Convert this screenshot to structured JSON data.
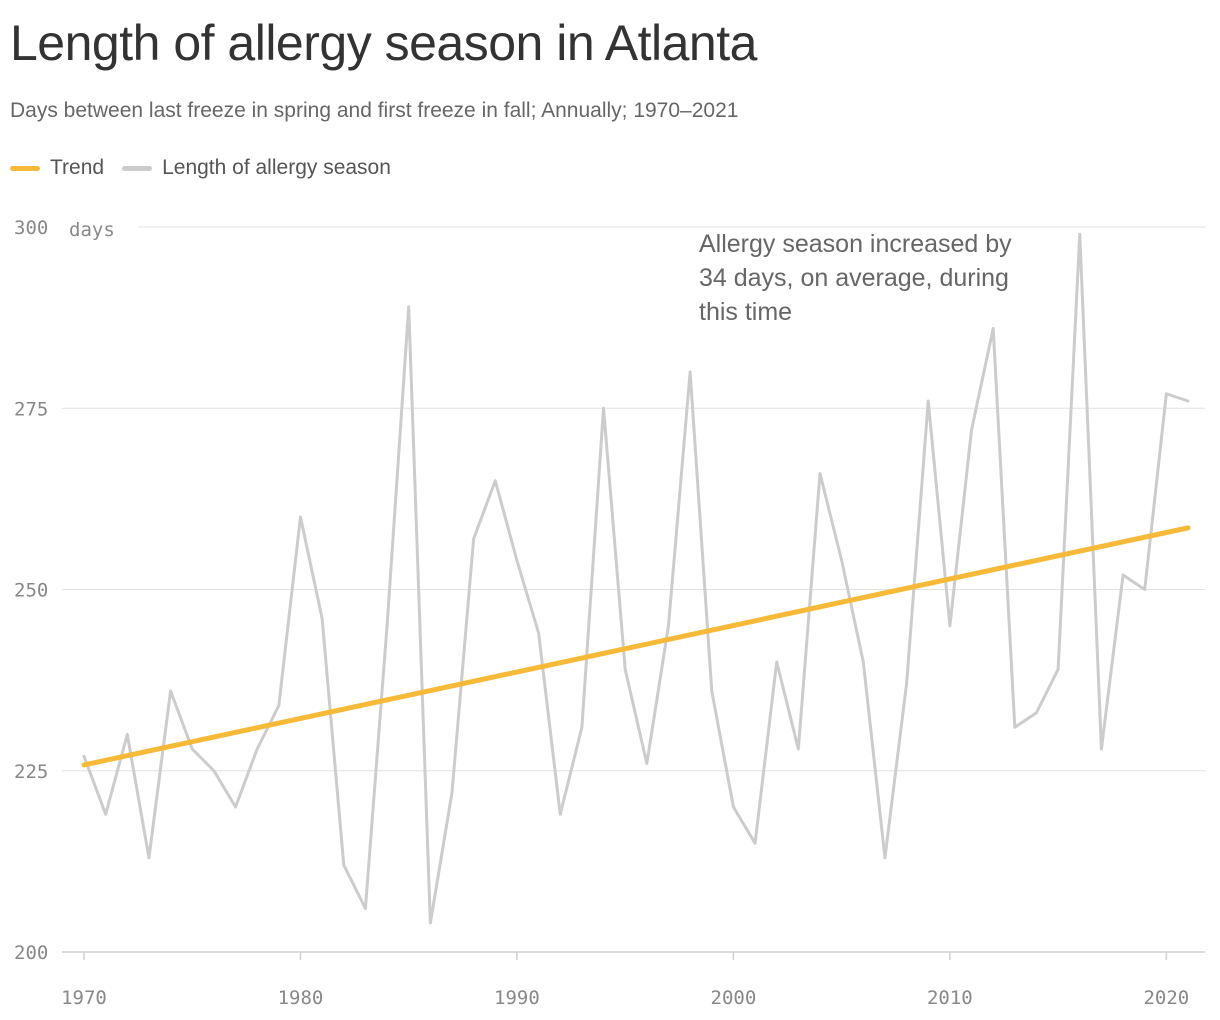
{
  "header": {
    "title": "Length of allergy season in Atlanta",
    "subtitle": "Days between last freeze in spring and first freeze in fall; Annually; 1970–2021"
  },
  "legend": {
    "items": [
      {
        "label": "Trend",
        "color": "#f7b938"
      },
      {
        "label": "Length of allergy season",
        "color": "#cccccc"
      }
    ]
  },
  "chart_data": {
    "type": "line",
    "title": "Length of allergy season in Atlanta",
    "subtitle": "Days between last freeze in spring and first freeze in fall; Annually; 1970–2021",
    "y_unit": "days",
    "xlim": [
      1970,
      2021
    ],
    "ylim": [
      200,
      300
    ],
    "x_ticks": [
      1970,
      1980,
      1990,
      2000,
      2010,
      2020
    ],
    "y_ticks": [
      200,
      225,
      250,
      275,
      300
    ],
    "grid": "horizontal",
    "legend_position": "top-left",
    "x": [
      1970,
      1971,
      1972,
      1973,
      1974,
      1975,
      1976,
      1977,
      1978,
      1979,
      1980,
      1981,
      1982,
      1983,
      1984,
      1985,
      1986,
      1987,
      1988,
      1989,
      1990,
      1991,
      1992,
      1993,
      1994,
      1995,
      1996,
      1997,
      1998,
      1999,
      2000,
      2001,
      2002,
      2003,
      2004,
      2005,
      2006,
      2007,
      2008,
      2009,
      2010,
      2011,
      2012,
      2013,
      2014,
      2015,
      2016,
      2017,
      2018,
      2019,
      2020,
      2021
    ],
    "series": [
      {
        "name": "Length of allergy season",
        "color": "#cccccc",
        "values": [
          227,
          219,
          230,
          213,
          236,
          228,
          225,
          220,
          228,
          234,
          260,
          246,
          212,
          206,
          245,
          289,
          204,
          222,
          257,
          265,
          254,
          244,
          219,
          231,
          275,
          239,
          226,
          245,
          280,
          236,
          220,
          215,
          240,
          228,
          266,
          254,
          240,
          213,
          237,
          276,
          245,
          272,
          286,
          231,
          233,
          239,
          299,
          228,
          252,
          250,
          277,
          276
        ]
      },
      {
        "name": "Trend",
        "color": "#f7b938",
        "x": [
          1970,
          2021
        ],
        "values": [
          225.8,
          258.5
        ]
      }
    ],
    "annotations": [
      {
        "text": "Allergy season increased by 34 days, on average, during this time",
        "lines": [
          "Allergy season increased by",
          "34 days, on average, during",
          "this time"
        ]
      }
    ]
  }
}
